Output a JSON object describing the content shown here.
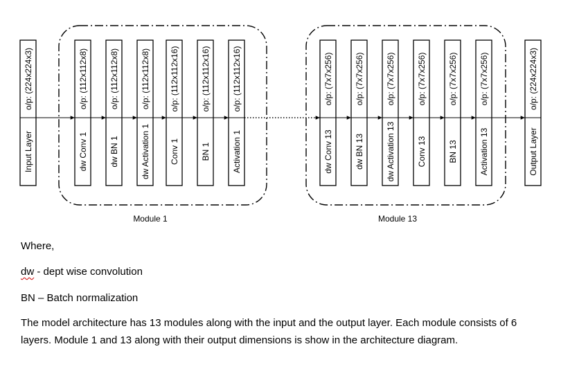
{
  "diagram": {
    "input_layer": {
      "name": "Input Layer",
      "output": "o/p: (224x224x3)"
    },
    "module_1": {
      "title": "Module 1",
      "layers": [
        {
          "name": "dw Conv 1",
          "output": "o/p: (112x112x8)"
        },
        {
          "name": "dw BN 1",
          "output": "o/p: (112x112x8)"
        },
        {
          "name": "dw Activation 1",
          "output": "o/p: (112x112x8)"
        },
        {
          "name": "Conv 1",
          "output": "o/p: (112x112x16)"
        },
        {
          "name": "BN 1",
          "output": "o/p: (112x112x16)"
        },
        {
          "name": "Activation 1",
          "output": "o/p: (112x112x16)"
        }
      ]
    },
    "module_13": {
      "title": "Module 13",
      "layers": [
        {
          "name": "dw Conv 13",
          "output": "o/p: (7x7x256)"
        },
        {
          "name": "dw BN 13",
          "output": "o/p: (7x7x256)"
        },
        {
          "name": "dw Activation 13",
          "output": "o/p: (7x7x256)"
        },
        {
          "name": "Conv 13",
          "output": "o/p: (7x7x256)"
        },
        {
          "name": "BN 13",
          "output": "o/p: (7x7x256)"
        },
        {
          "name": "Activation 13",
          "output": "o/p: (7x7x256)"
        }
      ]
    },
    "output_layer": {
      "name": "Output Layer",
      "output": "o/p: (224x224x3)"
    }
  },
  "text": {
    "where": "Where,",
    "dw_abbr": "dw",
    "dw_def": " - dept wise convolution",
    "bn_line": "BN – Batch normalization",
    "paragraph": "The model architecture has 13 modules along with the input and the output layer. Each module consists of 6 layers. Module 1 and 13 along with their output dimensions is show in the architecture diagram."
  }
}
